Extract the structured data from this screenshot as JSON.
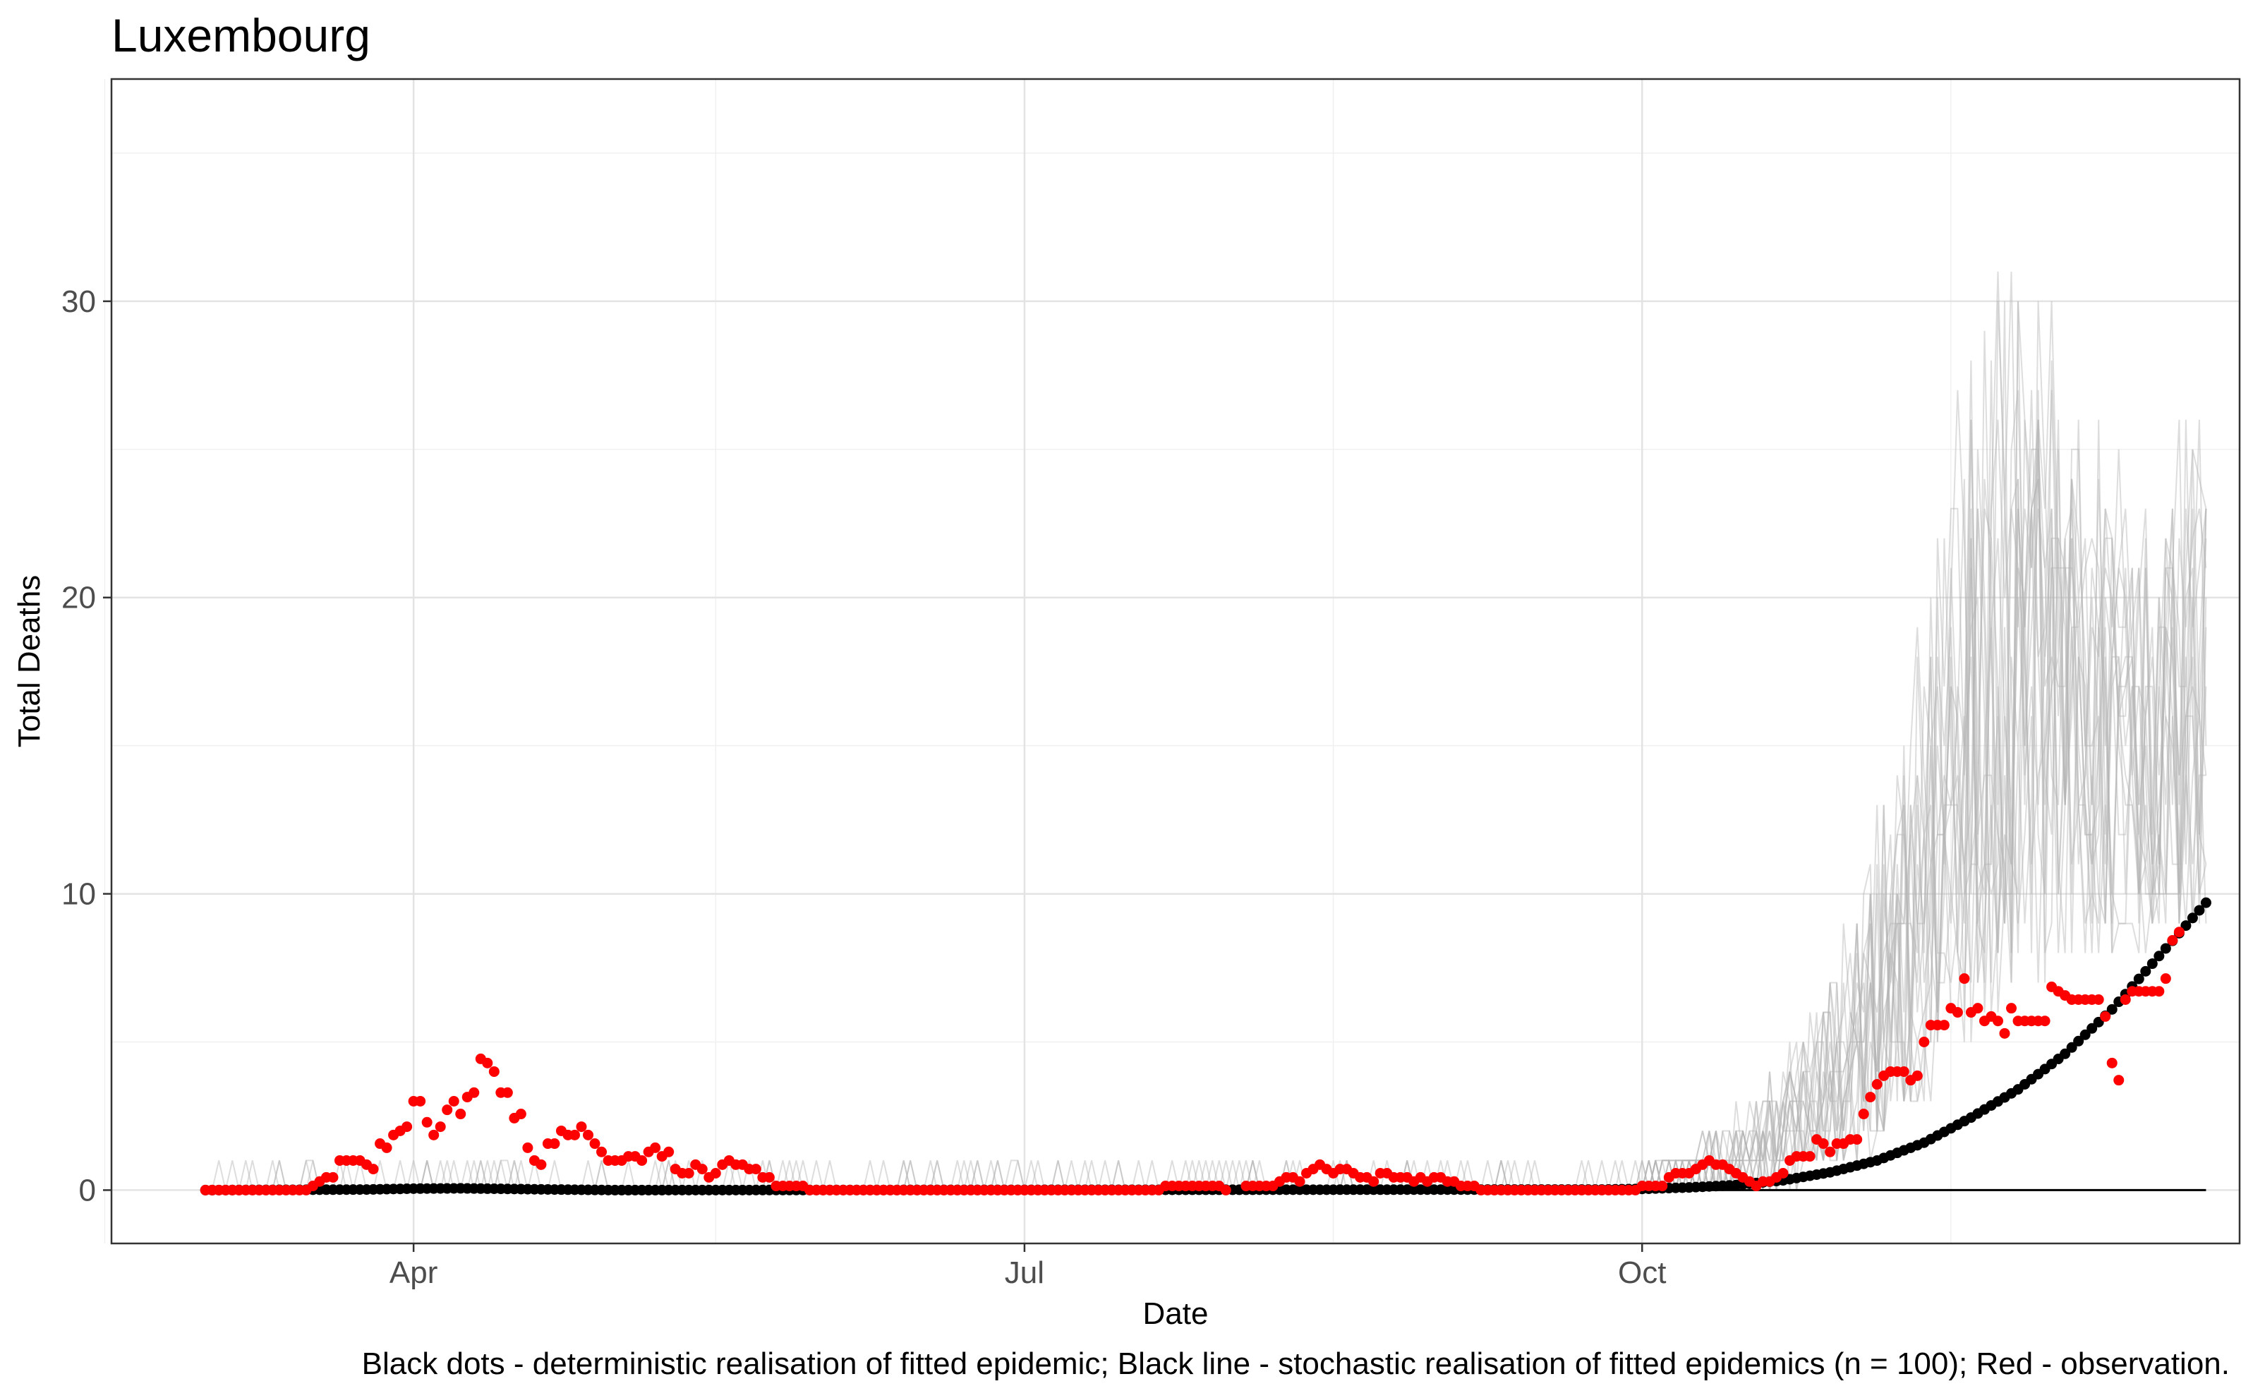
{
  "chart_data": {
    "type": "scatter",
    "title": "Luxembourg",
    "xlabel": "Date",
    "ylabel": "Total Deaths",
    "caption": "Black dots - deterministic realisation of fitted epidemic; Black line - stochastic realisation of fitted epidemics (n = 100); Red - observation.",
    "x_range": [
      "2020-02-16",
      "2020-12-29"
    ],
    "ylim": [
      -1.8,
      37.5
    ],
    "x_ticks": [
      {
        "date": "2020-04-01",
        "label": "Apr"
      },
      {
        "date": "2020-07-01",
        "label": "Jul"
      },
      {
        "date": "2020-10-01",
        "label": "Oct"
      }
    ],
    "y_ticks": [
      0,
      10,
      20,
      30
    ],
    "x_minor_ticks": [
      "2020-02-15",
      "2020-05-16",
      "2020-08-16",
      "2020-11-16"
    ],
    "y_minor_ticks": [
      5,
      15,
      25,
      35
    ],
    "grid": true,
    "series": [
      {
        "name": "Black dots - deterministic realisation of fitted epidemic",
        "kind": "deterministic",
        "color": "#000000",
        "x_start": "2020-03-01",
        "x_end": "2020-12-24",
        "points": [
          [
            "2020-03-01",
            0
          ],
          [
            "2020-03-25",
            0.02
          ],
          [
            "2020-04-01",
            0.05
          ],
          [
            "2020-04-08",
            0.06
          ],
          [
            "2020-04-15",
            0.04
          ],
          [
            "2020-04-22",
            0.02
          ],
          [
            "2020-05-01",
            0
          ],
          [
            "2020-09-25",
            0.02
          ],
          [
            "2020-10-01",
            0.04
          ],
          [
            "2020-10-08",
            0.09
          ],
          [
            "2020-10-15",
            0.17
          ],
          [
            "2020-10-22",
            0.33
          ],
          [
            "2020-10-29",
            0.6
          ],
          [
            "2020-11-05",
            1.0
          ],
          [
            "2020-11-12",
            1.6
          ],
          [
            "2020-11-19",
            2.45
          ],
          [
            "2020-11-26",
            3.4
          ],
          [
            "2020-12-03",
            4.6
          ],
          [
            "2020-12-10",
            6.1
          ],
          [
            "2020-12-17",
            7.9
          ],
          [
            "2020-12-24",
            9.7
          ]
        ]
      },
      {
        "name": "Red - observation",
        "kind": "observation",
        "color": "#ff0000",
        "points": [
          [
            "2020-03-01",
            0
          ],
          [
            "2020-03-16",
            0
          ],
          [
            "2020-03-17",
            0.14
          ],
          [
            "2020-03-18",
            0.29
          ],
          [
            "2020-03-19",
            0.43
          ],
          [
            "2020-03-20",
            0.43
          ],
          [
            "2020-03-21",
            1.0
          ],
          [
            "2020-03-22",
            1.0
          ],
          [
            "2020-03-23",
            1.0
          ],
          [
            "2020-03-24",
            1.0
          ],
          [
            "2020-03-25",
            0.86
          ],
          [
            "2020-03-26",
            0.71
          ],
          [
            "2020-03-27",
            1.57
          ],
          [
            "2020-03-28",
            1.43
          ],
          [
            "2020-03-29",
            1.86
          ],
          [
            "2020-03-30",
            2.0
          ],
          [
            "2020-03-31",
            2.14
          ],
          [
            "2020-04-01",
            3.0
          ],
          [
            "2020-04-02",
            3.0
          ],
          [
            "2020-04-03",
            2.29
          ],
          [
            "2020-04-04",
            1.86
          ],
          [
            "2020-04-05",
            2.14
          ],
          [
            "2020-04-06",
            2.71
          ],
          [
            "2020-04-07",
            3.0
          ],
          [
            "2020-04-08",
            2.57
          ],
          [
            "2020-04-09",
            3.14
          ],
          [
            "2020-04-10",
            3.29
          ],
          [
            "2020-04-11",
            4.43
          ],
          [
            "2020-04-12",
            4.29
          ],
          [
            "2020-04-13",
            4.0
          ],
          [
            "2020-04-14",
            3.29
          ],
          [
            "2020-04-15",
            3.29
          ],
          [
            "2020-04-16",
            2.43
          ],
          [
            "2020-04-17",
            2.57
          ],
          [
            "2020-04-18",
            1.43
          ],
          [
            "2020-04-19",
            1.0
          ],
          [
            "2020-04-20",
            0.86
          ],
          [
            "2020-04-21",
            1.57
          ],
          [
            "2020-04-22",
            1.57
          ],
          [
            "2020-04-23",
            2.0
          ],
          [
            "2020-04-24",
            1.86
          ],
          [
            "2020-04-25",
            1.86
          ],
          [
            "2020-04-26",
            2.14
          ],
          [
            "2020-04-27",
            1.86
          ],
          [
            "2020-04-28",
            1.57
          ],
          [
            "2020-04-29",
            1.29
          ],
          [
            "2020-04-30",
            1.0
          ],
          [
            "2020-05-01",
            1.0
          ],
          [
            "2020-05-02",
            1.0
          ],
          [
            "2020-05-03",
            1.14
          ],
          [
            "2020-05-04",
            1.14
          ],
          [
            "2020-05-05",
            1.0
          ],
          [
            "2020-05-06",
            1.29
          ],
          [
            "2020-05-07",
            1.43
          ],
          [
            "2020-05-08",
            1.14
          ],
          [
            "2020-05-09",
            1.29
          ],
          [
            "2020-05-10",
            0.71
          ],
          [
            "2020-05-11",
            0.57
          ],
          [
            "2020-05-12",
            0.57
          ],
          [
            "2020-05-13",
            0.86
          ],
          [
            "2020-05-14",
            0.71
          ],
          [
            "2020-05-15",
            0.43
          ],
          [
            "2020-05-16",
            0.57
          ],
          [
            "2020-05-17",
            0.86
          ],
          [
            "2020-05-18",
            1.0
          ],
          [
            "2020-05-19",
            0.86
          ],
          [
            "2020-05-20",
            0.86
          ],
          [
            "2020-05-21",
            0.71
          ],
          [
            "2020-05-22",
            0.71
          ],
          [
            "2020-05-23",
            0.43
          ],
          [
            "2020-05-24",
            0.43
          ],
          [
            "2020-05-25",
            0.14
          ],
          [
            "2020-05-26",
            0.14
          ],
          [
            "2020-05-27",
            0.14
          ],
          [
            "2020-05-28",
            0.14
          ],
          [
            "2020-05-29",
            0.14
          ],
          [
            "2020-05-30",
            0
          ],
          [
            "2020-07-21",
            0
          ],
          [
            "2020-07-22",
            0.14
          ],
          [
            "2020-07-30",
            0.14
          ],
          [
            "2020-07-31",
            0
          ],
          [
            "2020-08-03",
            0.14
          ],
          [
            "2020-08-07",
            0.14
          ],
          [
            "2020-08-08",
            0.29
          ],
          [
            "2020-08-09",
            0.43
          ],
          [
            "2020-08-10",
            0.43
          ],
          [
            "2020-08-11",
            0.29
          ],
          [
            "2020-08-12",
            0.57
          ],
          [
            "2020-08-13",
            0.71
          ],
          [
            "2020-08-14",
            0.86
          ],
          [
            "2020-08-15",
            0.71
          ],
          [
            "2020-08-16",
            0.57
          ],
          [
            "2020-08-17",
            0.71
          ],
          [
            "2020-08-18",
            0.71
          ],
          [
            "2020-08-19",
            0.57
          ],
          [
            "2020-08-20",
            0.43
          ],
          [
            "2020-08-21",
            0.43
          ],
          [
            "2020-08-22",
            0.29
          ],
          [
            "2020-08-23",
            0.57
          ],
          [
            "2020-08-24",
            0.57
          ],
          [
            "2020-08-25",
            0.43
          ],
          [
            "2020-08-26",
            0.43
          ],
          [
            "2020-08-27",
            0.43
          ],
          [
            "2020-08-28",
            0.29
          ],
          [
            "2020-08-29",
            0.43
          ],
          [
            "2020-08-30",
            0.29
          ],
          [
            "2020-08-31",
            0.43
          ],
          [
            "2020-09-01",
            0.43
          ],
          [
            "2020-09-02",
            0.29
          ],
          [
            "2020-09-03",
            0.29
          ],
          [
            "2020-09-04",
            0.14
          ],
          [
            "2020-09-05",
            0.14
          ],
          [
            "2020-09-06",
            0.14
          ],
          [
            "2020-09-07",
            0
          ],
          [
            "2020-09-30",
            0
          ],
          [
            "2020-10-01",
            0.14
          ],
          [
            "2020-10-02",
            0.14
          ],
          [
            "2020-10-03",
            0.14
          ],
          [
            "2020-10-04",
            0.14
          ],
          [
            "2020-10-05",
            0.43
          ],
          [
            "2020-10-06",
            0.57
          ],
          [
            "2020-10-07",
            0.57
          ],
          [
            "2020-10-08",
            0.57
          ],
          [
            "2020-10-09",
            0.71
          ],
          [
            "2020-10-10",
            0.86
          ],
          [
            "2020-10-11",
            1.0
          ],
          [
            "2020-10-12",
            0.86
          ],
          [
            "2020-10-13",
            0.86
          ],
          [
            "2020-10-14",
            0.71
          ],
          [
            "2020-10-15",
            0.57
          ],
          [
            "2020-10-16",
            0.43
          ],
          [
            "2020-10-17",
            0.29
          ],
          [
            "2020-10-18",
            0.14
          ],
          [
            "2020-10-19",
            0.29
          ],
          [
            "2020-10-20",
            0.29
          ],
          [
            "2020-10-21",
            0.43
          ],
          [
            "2020-10-22",
            0.57
          ],
          [
            "2020-10-23",
            1.0
          ],
          [
            "2020-10-24",
            1.14
          ],
          [
            "2020-10-25",
            1.14
          ],
          [
            "2020-10-26",
            1.14
          ],
          [
            "2020-10-27",
            1.71
          ],
          [
            "2020-10-28",
            1.57
          ],
          [
            "2020-10-29",
            1.29
          ],
          [
            "2020-10-30",
            1.57
          ],
          [
            "2020-10-31",
            1.57
          ],
          [
            "2020-11-01",
            1.71
          ],
          [
            "2020-11-02",
            1.71
          ],
          [
            "2020-11-03",
            2.57
          ],
          [
            "2020-11-04",
            3.14
          ],
          [
            "2020-11-05",
            3.57
          ],
          [
            "2020-11-06",
            3.86
          ],
          [
            "2020-11-07",
            4.0
          ],
          [
            "2020-11-08",
            4.0
          ],
          [
            "2020-11-09",
            4.0
          ],
          [
            "2020-11-10",
            3.71
          ],
          [
            "2020-11-11",
            3.86
          ],
          [
            "2020-11-12",
            5.0
          ],
          [
            "2020-11-13",
            5.57
          ],
          [
            "2020-11-14",
            5.57
          ],
          [
            "2020-11-15",
            5.57
          ],
          [
            "2020-11-16",
            6.14
          ],
          [
            "2020-11-17",
            6.0
          ],
          [
            "2020-11-18",
            7.14
          ],
          [
            "2020-11-19",
            6.0
          ],
          [
            "2020-11-20",
            6.14
          ],
          [
            "2020-11-21",
            5.71
          ],
          [
            "2020-11-22",
            5.86
          ],
          [
            "2020-11-23",
            5.71
          ],
          [
            "2020-11-24",
            5.29
          ],
          [
            "2020-11-25",
            6.14
          ],
          [
            "2020-11-26",
            5.71
          ],
          [
            "2020-11-27",
            5.71
          ],
          [
            "2020-11-28",
            5.71
          ],
          [
            "2020-11-29",
            5.71
          ],
          [
            "2020-11-30",
            5.71
          ],
          [
            "2020-12-01",
            6.86
          ],
          [
            "2020-12-02",
            6.71
          ],
          [
            "2020-12-03",
            6.57
          ],
          [
            "2020-12-04",
            6.43
          ],
          [
            "2020-12-05",
            6.43
          ],
          [
            "2020-12-06",
            6.43
          ],
          [
            "2020-12-07",
            6.43
          ],
          [
            "2020-12-08",
            6.43
          ],
          [
            "2020-12-09",
            5.86
          ],
          [
            "2020-12-10",
            4.29
          ],
          [
            "2020-12-11",
            3.71
          ],
          [
            "2020-12-12",
            6.43
          ],
          [
            "2020-12-13",
            6.71
          ],
          [
            "2020-12-14",
            6.71
          ],
          [
            "2020-12-15",
            6.71
          ],
          [
            "2020-12-16",
            6.71
          ],
          [
            "2020-12-17",
            6.71
          ],
          [
            "2020-12-18",
            7.14
          ],
          [
            "2020-12-19",
            8.43
          ],
          [
            "2020-12-20",
            8.71
          ]
        ]
      },
      {
        "name": "Black line - stochastic realisation of fitted epidemics (n = 100)",
        "kind": "stochastic",
        "color": "#000000",
        "points": [
          [
            "2020-03-01",
            0
          ],
          [
            "2020-12-24",
            0
          ]
        ]
      }
    ],
    "stochastic_envelope": {
      "color": "#b3b3b3",
      "median": [
        [
          "2020-10-01",
          0.2
        ],
        [
          "2020-10-15",
          0.8
        ],
        [
          "2020-10-25",
          2.0
        ],
        [
          "2020-11-01",
          4.0
        ],
        [
          "2020-11-08",
          7.0
        ],
        [
          "2020-11-15",
          11.5
        ],
        [
          "2020-11-22",
          15.0
        ],
        [
          "2020-11-29",
          17.0
        ],
        [
          "2020-12-06",
          17.0
        ],
        [
          "2020-12-13",
          16.0
        ],
        [
          "2020-12-20",
          15.5
        ],
        [
          "2020-12-24",
          15.0
        ]
      ],
      "upper": [
        [
          "2020-10-01",
          1.0
        ],
        [
          "2020-10-15",
          3.0
        ],
        [
          "2020-10-25",
          6.0
        ],
        [
          "2020-11-01",
          10.0
        ],
        [
          "2020-11-08",
          16.0
        ],
        [
          "2020-11-15",
          26.0
        ],
        [
          "2020-11-20",
          32.0
        ],
        [
          "2020-11-26",
          36.0
        ],
        [
          "2020-12-03",
          29.0
        ],
        [
          "2020-12-10",
          26.0
        ],
        [
          "2020-12-17",
          25.0
        ],
        [
          "2020-12-24",
          30.0
        ]
      ],
      "lower": [
        [
          "2020-10-01",
          0
        ],
        [
          "2020-10-20",
          0
        ],
        [
          "2020-11-01",
          1.0
        ],
        [
          "2020-11-08",
          2.0
        ],
        [
          "2020-11-15",
          4.0
        ],
        [
          "2020-11-22",
          6.0
        ],
        [
          "2020-11-29",
          7.0
        ],
        [
          "2020-12-06",
          8.0
        ],
        [
          "2020-12-13",
          8.0
        ],
        [
          "2020-12-20",
          9.0
        ],
        [
          "2020-12-24",
          9.0
        ]
      ]
    }
  }
}
